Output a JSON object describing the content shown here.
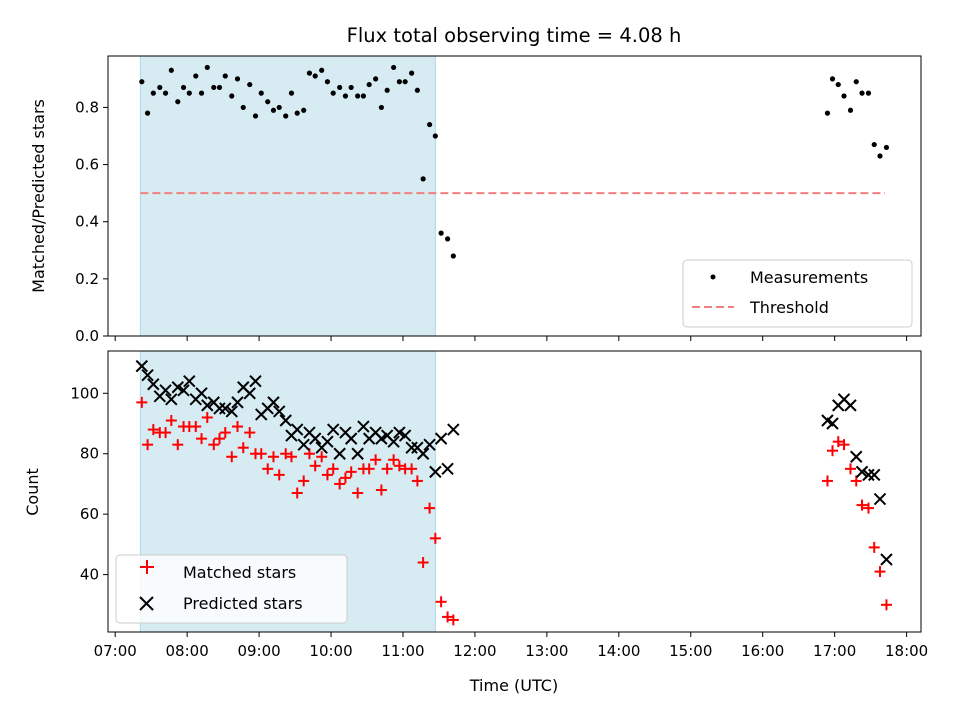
{
  "figure": {
    "title": "Flux total observing time = 4.08 h",
    "xlabel": "Time (UTC)",
    "x_ticks": [
      "07:00",
      "08:00",
      "09:00",
      "10:00",
      "11:00",
      "12:00",
      "13:00",
      "14:00",
      "15:00",
      "16:00",
      "17:00",
      "18:00"
    ]
  },
  "chart_data": [
    {
      "type": "scatter",
      "ylabel": "Matched/Predicted stars",
      "xlim_hours": [
        6.9,
        18.2
      ],
      "ylim": [
        0,
        0.98
      ],
      "y_ticks": [
        "0.0",
        "0.2",
        "0.4",
        "0.6",
        "0.8"
      ],
      "shaded_span": {
        "start_hours": 7.35,
        "end_hours": 11.45,
        "color": "#add8e6"
      },
      "threshold": {
        "name": "Threshold",
        "value": 0.5,
        "x_start_hours": 7.35,
        "x_end_hours": 17.7,
        "color": "#f08080",
        "style": "dashed"
      },
      "series": [
        {
          "name": "Measurements",
          "color": "#000000",
          "marker": "dot",
          "x_hours": [
            7.37,
            7.45,
            7.53,
            7.62,
            7.7,
            7.78,
            7.87,
            7.95,
            8.03,
            8.12,
            8.2,
            8.28,
            8.37,
            8.45,
            8.53,
            8.62,
            8.7,
            8.78,
            8.87,
            8.95,
            9.03,
            9.12,
            9.2,
            9.28,
            9.37,
            9.45,
            9.53,
            9.62,
            9.7,
            9.78,
            9.87,
            9.95,
            10.03,
            10.12,
            10.2,
            10.28,
            10.37,
            10.45,
            10.53,
            10.62,
            10.7,
            10.78,
            10.87,
            10.95,
            11.03,
            11.12,
            11.2,
            11.28,
            11.37,
            11.45,
            11.53,
            11.62,
            11.7,
            16.9,
            16.97,
            17.05,
            17.13,
            17.22,
            17.3,
            17.38,
            17.47,
            17.55,
            17.63,
            17.72
          ],
          "y": [
            0.89,
            0.78,
            0.85,
            0.87,
            0.85,
            0.93,
            0.82,
            0.87,
            0.85,
            0.91,
            0.85,
            0.94,
            0.87,
            0.87,
            0.91,
            0.84,
            0.9,
            0.8,
            0.88,
            0.77,
            0.85,
            0.82,
            0.79,
            0.8,
            0.77,
            0.85,
            0.78,
            0.79,
            0.92,
            0.91,
            0.93,
            0.89,
            0.85,
            0.87,
            0.84,
            0.87,
            0.84,
            0.84,
            0.88,
            0.9,
            0.8,
            0.86,
            0.94,
            0.89,
            0.89,
            0.92,
            0.86,
            0.55,
            0.74,
            0.7,
            0.36,
            0.34,
            0.28,
            0.78,
            0.9,
            0.88,
            0.84,
            0.79,
            0.89,
            0.85,
            0.85,
            0.67,
            0.63,
            0.66
          ]
        }
      ],
      "legend": {
        "location": "lower right",
        "entries": [
          "Measurements",
          "Threshold"
        ]
      }
    },
    {
      "type": "scatter",
      "ylabel": "Count",
      "xlim_hours": [
        6.9,
        18.2
      ],
      "ylim": [
        21,
        114
      ],
      "y_ticks": [
        "40",
        "60",
        "80",
        "100"
      ],
      "shaded_span": {
        "start_hours": 7.35,
        "end_hours": 11.45,
        "color": "#add8e6"
      },
      "series": [
        {
          "name": "Matched stars",
          "color": "#ff0000",
          "marker": "plus",
          "x_hours": [
            7.37,
            7.45,
            7.53,
            7.62,
            7.7,
            7.78,
            7.87,
            7.95,
            8.03,
            8.12,
            8.2,
            8.28,
            8.37,
            8.45,
            8.53,
            8.62,
            8.7,
            8.78,
            8.87,
            8.95,
            9.03,
            9.12,
            9.2,
            9.28,
            9.37,
            9.45,
            9.53,
            9.62,
            9.7,
            9.78,
            9.87,
            9.95,
            10.03,
            10.12,
            10.2,
            10.28,
            10.37,
            10.45,
            10.53,
            10.62,
            10.7,
            10.78,
            10.87,
            10.95,
            11.03,
            11.12,
            11.2,
            11.28,
            11.37,
            11.45,
            11.53,
            11.62,
            11.7,
            16.9,
            16.97,
            17.05,
            17.13,
            17.22,
            17.3,
            17.38,
            17.47,
            17.55,
            17.63,
            17.72
          ],
          "y": [
            97,
            83,
            88,
            87,
            87,
            91,
            83,
            89,
            89,
            89,
            85,
            92,
            83,
            85,
            87,
            79,
            89,
            82,
            87,
            80,
            80,
            75,
            79,
            73,
            80,
            79,
            67,
            71,
            80,
            76,
            79,
            73,
            75,
            70,
            72,
            74,
            67,
            75,
            75,
            78,
            68,
            75,
            78,
            76,
            75,
            75,
            71,
            44,
            62,
            52,
            31,
            26,
            25,
            71,
            81,
            84,
            83,
            75,
            71,
            63,
            62,
            49,
            41,
            30
          ]
        },
        {
          "name": "Predicted stars",
          "color": "#000000",
          "marker": "x",
          "x_hours": [
            7.37,
            7.45,
            7.53,
            7.62,
            7.7,
            7.78,
            7.87,
            7.95,
            8.03,
            8.12,
            8.2,
            8.28,
            8.37,
            8.45,
            8.53,
            8.62,
            8.7,
            8.78,
            8.87,
            8.95,
            9.03,
            9.12,
            9.2,
            9.28,
            9.37,
            9.45,
            9.53,
            9.62,
            9.7,
            9.78,
            9.87,
            9.95,
            10.03,
            10.12,
            10.2,
            10.28,
            10.37,
            10.45,
            10.53,
            10.62,
            10.7,
            10.78,
            10.87,
            10.95,
            11.03,
            11.12,
            11.2,
            11.28,
            11.37,
            11.45,
            11.53,
            11.62,
            11.7,
            16.9,
            16.97,
            17.05,
            17.13,
            17.22,
            17.3,
            17.38,
            17.47,
            17.55,
            17.63,
            17.72
          ],
          "y": [
            109,
            106,
            103,
            99,
            101,
            98,
            102,
            101,
            104,
            98,
            100,
            96,
            97,
            95,
            95,
            94,
            97,
            102,
            100,
            104,
            93,
            95,
            97,
            94,
            91,
            86,
            88,
            83,
            87,
            85,
            82,
            84,
            88,
            80,
            87,
            85,
            80,
            89,
            85,
            87,
            85,
            86,
            84,
            87,
            86,
            82,
            82,
            80,
            83,
            74,
            85,
            75,
            88,
            91,
            90,
            96,
            98,
            96,
            79,
            74,
            73,
            73,
            65,
            45
          ]
        }
      ],
      "legend": {
        "location": "lower left",
        "entries": [
          "Matched stars",
          "Predicted stars"
        ]
      }
    }
  ]
}
